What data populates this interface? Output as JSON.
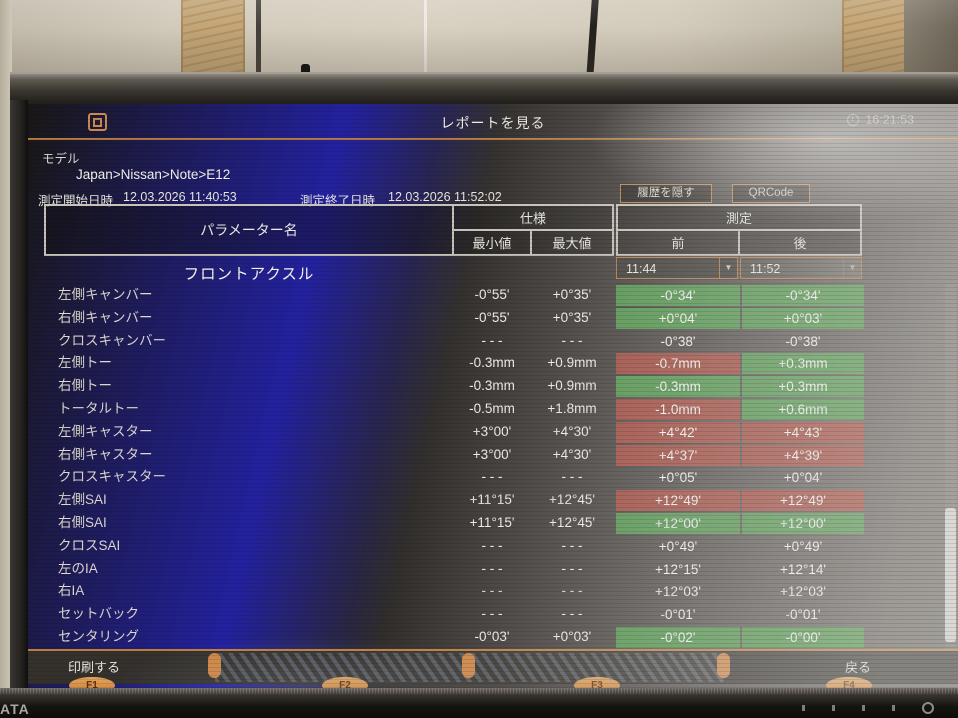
{
  "header": {
    "title": "レポートを見る",
    "clock": "16:21:53"
  },
  "model": {
    "label": "モデル",
    "path": "Japan>Nissan>Note>E12"
  },
  "meta": {
    "start_label": "測定開始日時",
    "start_value": "12.03.2026 11:40:53",
    "end_label": "測定終了日時",
    "end_value": "12.03.2026 11:52:02"
  },
  "actions": {
    "hide_history": "履歴を隠す",
    "qrcode": "QRCode"
  },
  "table": {
    "headers": {
      "param": "パラメーター名",
      "spec": "仕様",
      "meas": "測定",
      "min": "最小値",
      "max": "最大値",
      "before": "前",
      "after": "後"
    },
    "section": "フロントアクスル",
    "before_time": "11:44",
    "after_time": "11:52",
    "rows": [
      {
        "name": "左側キャンバー",
        "min": "-0°55'",
        "max": "+0°35'",
        "before": "-0°34'",
        "after": "-0°34'",
        "before_status": "ok",
        "after_status": "ok"
      },
      {
        "name": "右側キャンバー",
        "min": "-0°55'",
        "max": "+0°35'",
        "before": "+0°04'",
        "after": "+0°03'",
        "before_status": "ok",
        "after_status": "ok"
      },
      {
        "name": "クロスキャンバー",
        "min": "- - -",
        "max": "- - -",
        "before": "-0°38'",
        "after": "-0°38'",
        "before_status": "none",
        "after_status": "none"
      },
      {
        "name": "左側トー",
        "min": "-0.3mm",
        "max": "+0.9mm",
        "before": "-0.7mm",
        "after": "+0.3mm",
        "before_status": "ng",
        "after_status": "ok"
      },
      {
        "name": "右側トー",
        "min": "-0.3mm",
        "max": "+0.9mm",
        "before": "-0.3mm",
        "after": "+0.3mm",
        "before_status": "ok",
        "after_status": "ok"
      },
      {
        "name": "トータルトー",
        "min": "-0.5mm",
        "max": "+1.8mm",
        "before": "-1.0mm",
        "after": "+0.6mm",
        "before_status": "ng",
        "after_status": "ok"
      },
      {
        "name": "左側キャスター",
        "min": "+3°00'",
        "max": "+4°30'",
        "before": "+4°42'",
        "after": "+4°43'",
        "before_status": "ng",
        "after_status": "ng"
      },
      {
        "name": "右側キャスター",
        "min": "+3°00'",
        "max": "+4°30'",
        "before": "+4°37'",
        "after": "+4°39'",
        "before_status": "ng",
        "after_status": "ng"
      },
      {
        "name": "クロスキャスター",
        "min": "- - -",
        "max": "- - -",
        "before": "+0°05'",
        "after": "+0°04'",
        "before_status": "none",
        "after_status": "none"
      },
      {
        "name": "左側SAI",
        "min": "+11°15'",
        "max": "+12°45'",
        "before": "+12°49'",
        "after": "+12°49'",
        "before_status": "ng",
        "after_status": "ng"
      },
      {
        "name": "右側SAI",
        "min": "+11°15'",
        "max": "+12°45'",
        "before": "+12°00'",
        "after": "+12°00'",
        "before_status": "ok",
        "after_status": "ok"
      },
      {
        "name": "クロスSAI",
        "min": "- - -",
        "max": "- - -",
        "before": "+0°49'",
        "after": "+0°49'",
        "before_status": "none",
        "after_status": "none"
      },
      {
        "name": "左のIA",
        "min": "- - -",
        "max": "- - -",
        "before": "+12°15'",
        "after": "+12°14'",
        "before_status": "none",
        "after_status": "none"
      },
      {
        "name": "右IA",
        "min": "- - -",
        "max": "- - -",
        "before": "+12°03'",
        "after": "+12°03'",
        "before_status": "none",
        "after_status": "none"
      },
      {
        "name": "セットバック",
        "min": "- - -",
        "max": "- - -",
        "before": "-0°01'",
        "after": "-0°01'",
        "before_status": "none",
        "after_status": "none"
      },
      {
        "name": "センタリング",
        "min": "-0°03'",
        "max": "+0°03'",
        "before": "-0°02'",
        "after": "-0°00'",
        "before_status": "ok",
        "after_status": "ok"
      }
    ]
  },
  "footer": {
    "print": "印刷する",
    "back": "戻る",
    "f1": "F1",
    "f2": "F2",
    "f3": "F3",
    "f4": "F4"
  },
  "monitor": {
    "brand": "ATA"
  },
  "colors": {
    "accent": "#c08048",
    "ok": "#4b9247",
    "ng": "#9e4338",
    "none": "transparent"
  }
}
